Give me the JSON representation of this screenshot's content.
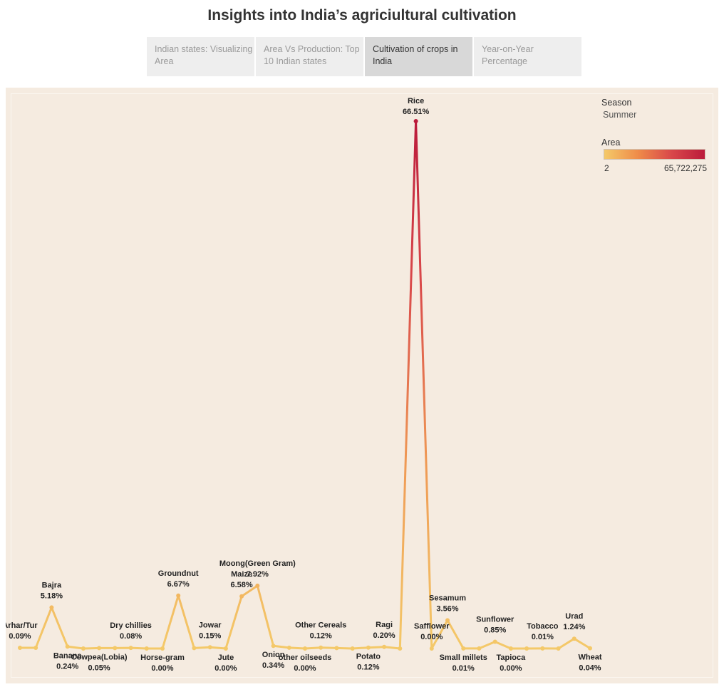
{
  "header": {
    "title": "Insights into India’s agriciultural cultivation"
  },
  "tabs": [
    {
      "label": "Indian states: Visualizing Area",
      "active": false
    },
    {
      "label": "Area Vs Production: Top 10 Indian states",
      "active": false
    },
    {
      "label": "Cultivation of crops in India",
      "active": true
    },
    {
      "label": "Year-on-Year Percentage",
      "active": false
    }
  ],
  "legend": {
    "season_title": "Season",
    "season_value": "Summer",
    "area_title": "Area",
    "area_min": "2",
    "area_max": "65,722,275",
    "colors": [
      "#f4c969",
      "#ef8c49",
      "#d9484a",
      "#bb1b3b"
    ]
  },
  "chart_data": {
    "type": "line",
    "title": "Insights into India’s agriciultural cultivation",
    "xlabel": "",
    "ylabel": "",
    "ylim": [
      0,
      66.51
    ],
    "grid": false,
    "legend_position": "top-right",
    "color_scale": {
      "measure": "Area",
      "min": 2,
      "max": 65722275
    },
    "points": [
      {
        "name": "Arhar/Tur",
        "value": 0.09,
        "label": "0.09%",
        "labeled": true,
        "below": false
      },
      {
        "name": "",
        "value": 0.09,
        "label": "",
        "labeled": false,
        "below": false
      },
      {
        "name": "Bajra",
        "value": 5.18,
        "label": "5.18%",
        "labeled": true,
        "below": false
      },
      {
        "name": "Banana",
        "value": 0.24,
        "label": "0.24%",
        "labeled": true,
        "below": true
      },
      {
        "name": "",
        "value": 0.0,
        "label": "",
        "labeled": false,
        "below": false
      },
      {
        "name": "Cowpea(Lobia)",
        "value": 0.05,
        "label": "0.05%",
        "labeled": true,
        "below": true
      },
      {
        "name": "",
        "value": 0.05,
        "label": "",
        "labeled": false,
        "below": false
      },
      {
        "name": "Dry chillies",
        "value": 0.08,
        "label": "0.08%",
        "labeled": true,
        "below": false
      },
      {
        "name": "",
        "value": 0.0,
        "label": "",
        "labeled": false,
        "below": false
      },
      {
        "name": "Horse-gram",
        "value": 0.0,
        "label": "0.00%",
        "labeled": true,
        "below": true
      },
      {
        "name": "Groundnut",
        "value": 6.67,
        "label": "6.67%",
        "labeled": true,
        "below": false
      },
      {
        "name": "",
        "value": 0.05,
        "label": "",
        "labeled": false,
        "below": false
      },
      {
        "name": "Jowar",
        "value": 0.15,
        "label": "0.15%",
        "labeled": true,
        "below": false
      },
      {
        "name": "Jute",
        "value": 0.0,
        "label": "0.00%",
        "labeled": true,
        "below": true
      },
      {
        "name": "Maize",
        "value": 6.58,
        "label": "6.58%",
        "labeled": true,
        "below": false
      },
      {
        "name": "Moong(Green Gram)",
        "value": 7.92,
        "label": "7.92%",
        "labeled": true,
        "below": false
      },
      {
        "name": "Onion",
        "value": 0.34,
        "label": "0.34%",
        "labeled": true,
        "below": true
      },
      {
        "name": "",
        "value": 0.1,
        "label": "",
        "labeled": false,
        "below": false
      },
      {
        "name": "other oilseeds",
        "value": 0.0,
        "label": "0.00%",
        "labeled": true,
        "below": true
      },
      {
        "name": "Other Cereals",
        "value": 0.12,
        "label": "0.12%",
        "labeled": true,
        "below": false
      },
      {
        "name": "",
        "value": 0.05,
        "label": "",
        "labeled": false,
        "below": false
      },
      {
        "name": "",
        "value": 0.0,
        "label": "",
        "labeled": false,
        "below": false
      },
      {
        "name": "Potato",
        "value": 0.12,
        "label": "0.12%",
        "labeled": true,
        "below": true
      },
      {
        "name": "Ragi",
        "value": 0.2,
        "label": "0.20%",
        "labeled": true,
        "below": false
      },
      {
        "name": "",
        "value": 0.0,
        "label": "",
        "labeled": false,
        "below": false
      },
      {
        "name": "Rice",
        "value": 66.51,
        "label": "66.51%",
        "labeled": true,
        "below": false
      },
      {
        "name": "Safflower",
        "value": 0.0,
        "label": "0.00%",
        "labeled": true,
        "below": false
      },
      {
        "name": "Sesamum",
        "value": 3.56,
        "label": "3.56%",
        "labeled": true,
        "below": false
      },
      {
        "name": "Small millets",
        "value": 0.01,
        "label": "0.01%",
        "labeled": true,
        "below": true
      },
      {
        "name": "",
        "value": 0.01,
        "label": "",
        "labeled": false,
        "below": false
      },
      {
        "name": "Sunflower",
        "value": 0.85,
        "label": "0.85%",
        "labeled": true,
        "below": false
      },
      {
        "name": "Tapioca",
        "value": 0.0,
        "label": "0.00%",
        "labeled": true,
        "below": true
      },
      {
        "name": "",
        "value": 0.0,
        "label": "",
        "labeled": false,
        "below": false
      },
      {
        "name": "Tobacco",
        "value": 0.01,
        "label": "0.01%",
        "labeled": true,
        "below": false
      },
      {
        "name": "",
        "value": 0.0,
        "label": "",
        "labeled": false,
        "below": false
      },
      {
        "name": "Urad",
        "value": 1.24,
        "label": "1.24%",
        "labeled": true,
        "below": false
      },
      {
        "name": "Wheat",
        "value": 0.04,
        "label": "0.04%",
        "labeled": true,
        "below": true
      }
    ]
  }
}
